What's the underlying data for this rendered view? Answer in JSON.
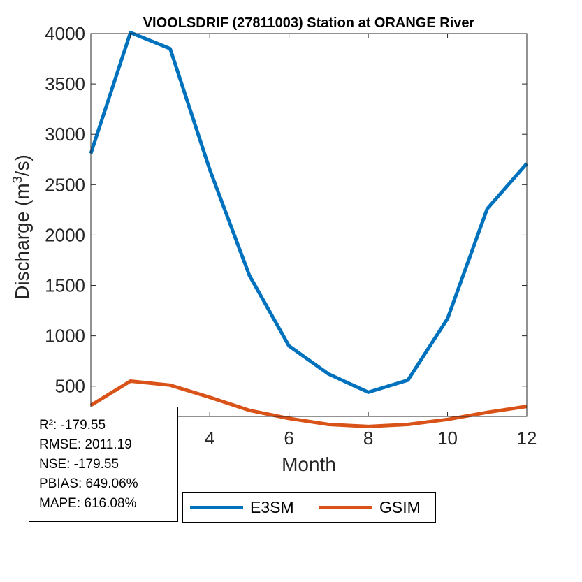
{
  "chart_data": {
    "type": "line",
    "title": "VIOOLSDRIF (27811003)  Station at  ORANGE  River",
    "xlabel": "Month",
    "ylabel_main": "Discharge (m",
    "ylabel_sup": "3",
    "ylabel_tail": "/s)",
    "xlim": [
      1,
      12
    ],
    "ylim": [
      200,
      4000
    ],
    "xticks": [
      2,
      4,
      6,
      8,
      10,
      12
    ],
    "yticks": [
      500,
      1000,
      1500,
      2000,
      2500,
      3000,
      3500,
      4000
    ],
    "x": [
      1,
      2,
      3,
      4,
      5,
      6,
      7,
      8,
      9,
      10,
      11,
      12
    ],
    "series": [
      {
        "name": "E3SM",
        "color": "#0072BD",
        "values": [
          2810,
          4010,
          3850,
          2650,
          1600,
          900,
          620,
          440,
          560,
          1170,
          2260,
          2710
        ]
      },
      {
        "name": "GSIM",
        "color": "#D95319",
        "values": [
          310,
          550,
          510,
          390,
          260,
          180,
          120,
          100,
          120,
          170,
          240,
          300
        ]
      }
    ],
    "grid": false,
    "legend_position": "bottom"
  },
  "stats": {
    "r2": "R²: -179.55",
    "rmse": "RMSE: 2011.19",
    "nse": "NSE: -179.55",
    "pbias": "PBIAS: 649.06%",
    "mape": "MAPE: 616.08%"
  }
}
